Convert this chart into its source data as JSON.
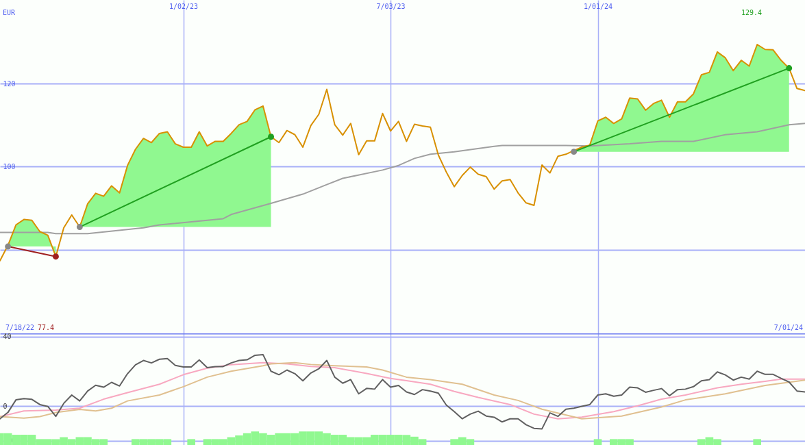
{
  "chart_data": [
    {
      "type": "line",
      "ylabel": "EUR",
      "xlim": [
        "2022-07-25",
        "2024-07-01"
      ],
      "ylim": [
        59.9,
        140.1
      ],
      "xticks": [
        {
          "value": "2023-01-02",
          "label": "1/02/23"
        },
        {
          "value": "2023-07-03",
          "label": "7/03/23"
        },
        {
          "value": "2024-01-01",
          "label": "1/01/24"
        }
      ],
      "yticks": [
        {
          "value": 80,
          "label": null
        },
        100,
        120
      ],
      "grid": true,
      "x": [
        "2022-07-25",
        "2022-08-01",
        "2022-08-08",
        "2022-08-15",
        "2022-08-22",
        "2022-08-29",
        "2022-09-05",
        "2022-09-12",
        "2022-09-19",
        "2022-09-26",
        "2022-10-03",
        "2022-10-10",
        "2022-10-17",
        "2022-10-24",
        "2022-10-31",
        "2022-11-07",
        "2022-11-14",
        "2022-11-21",
        "2022-11-28",
        "2022-12-05",
        "2022-12-12",
        "2022-12-19",
        "2022-12-26",
        "2023-01-02",
        "2023-01-09",
        "2023-01-16",
        "2023-01-23",
        "2023-01-30",
        "2023-02-06",
        "2023-02-13",
        "2023-02-20",
        "2023-02-27",
        "2023-03-06",
        "2023-03-13",
        "2023-03-20",
        "2023-03-27",
        "2023-04-03",
        "2023-04-10",
        "2023-04-17",
        "2023-04-24",
        "2023-05-01",
        "2023-05-08",
        "2023-05-15",
        "2023-05-22",
        "2023-05-29",
        "2023-06-05",
        "2023-06-12",
        "2023-06-19",
        "2023-06-26",
        "2023-07-03",
        "2023-07-10",
        "2023-07-17",
        "2023-07-24",
        "2023-07-31",
        "2023-08-07",
        "2023-08-14",
        "2023-08-21",
        "2023-08-28",
        "2023-09-04",
        "2023-09-11",
        "2023-09-18",
        "2023-09-25",
        "2023-10-02",
        "2023-10-09",
        "2023-10-16",
        "2023-10-23",
        "2023-10-30",
        "2023-11-06",
        "2023-11-13",
        "2023-11-20",
        "2023-11-27",
        "2023-12-04",
        "2023-12-11",
        "2023-12-18",
        "2023-12-25",
        "2024-01-01",
        "2024-01-08",
        "2024-01-15",
        "2024-01-22",
        "2024-01-29",
        "2024-02-05",
        "2024-02-12",
        "2024-02-19",
        "2024-02-26",
        "2024-03-04",
        "2024-03-11",
        "2024-03-18",
        "2024-03-25",
        "2024-04-01",
        "2024-04-08",
        "2024-04-15",
        "2024-04-22",
        "2024-04-29",
        "2024-05-06",
        "2024-05-13",
        "2024-05-20",
        "2024-05-27",
        "2024-06-03",
        "2024-06-10",
        "2024-06-17",
        "2024-06-24",
        "2024-07-01"
      ],
      "series": [
        {
          "color": "#a0a0a0",
          "x": [
            "2022-07-25",
            "2022-09-05",
            "2022-09-12",
            "2022-10-10",
            "2022-11-28",
            "2022-12-12",
            "2023-02-06",
            "2023-02-13",
            "2023-03-20",
            "2023-04-17",
            "2023-05-08",
            "2023-05-22",
            "2023-06-26",
            "2023-07-10",
            "2023-07-24",
            "2023-08-07",
            "2023-08-28",
            "2023-10-02",
            "2023-10-09",
            "2023-12-04",
            "2023-12-25",
            "2024-01-29",
            "2024-02-26",
            "2024-03-25",
            "2024-04-22",
            "2024-05-20",
            "2024-06-17",
            "2024-07-01"
          ],
          "values": [
            84.2,
            84.2,
            83.9,
            83.9,
            85.3,
            86.0,
            87.5,
            88.5,
            91.2,
            93.4,
            95.7,
            97.2,
            99.2,
            100.3,
            102.0,
            103.0,
            103.6,
            104.9,
            105.1,
            105.1,
            105.0,
            105.5,
            106.1,
            106.1,
            107.7,
            108.4,
            110.1,
            110.4
          ]
        },
        {
          "color": "#d89000",
          "values": [
            77.4,
            81.1,
            86.0,
            87.3,
            87.1,
            84.4,
            83.5,
            78.4,
            85.3,
            88.4,
            85.5,
            91.1,
            93.6,
            92.9,
            95.4,
            93.7,
            100.3,
            104.2,
            106.8,
            105.8,
            108.0,
            108.4,
            105.5,
            104.7,
            104.7,
            108.4,
            105.0,
            106.1,
            106.1,
            108.0,
            110.1,
            110.9,
            113.7,
            114.6,
            107.2,
            105.8,
            108.7,
            107.7,
            104.7,
            109.9,
            112.6,
            118.6,
            110.1,
            107.6,
            110.4,
            102.9,
            106.2,
            106.2,
            112.8,
            108.6,
            110.9,
            106.1,
            110.2,
            109.8,
            109.5,
            102.8,
            98.7,
            95.2,
            97.9,
            99.9,
            98.2,
            97.6,
            94.6,
            96.6,
            96.9,
            93.7,
            91.3,
            90.7,
            100.4,
            98.5,
            102.5,
            103.0,
            103.9,
            104.7,
            105.2,
            111.0,
            111.9,
            110.4,
            111.5,
            116.5,
            116.3,
            113.6,
            115.2,
            116.0,
            111.9,
            115.6,
            115.6,
            117.5,
            122.1,
            122.7,
            127.6,
            126.2,
            123.1,
            125.6,
            124.2,
            129.4,
            128.2,
            128.1,
            125.6,
            123.7,
            118.8,
            118.3
          ],
          "lower": [
            null,
            80.8,
            80.8,
            80.8,
            80.8,
            80.8,
            80.8,
            80.8,
            null,
            null,
            85.5,
            85.5,
            85.5,
            85.5,
            85.5,
            85.5,
            85.5,
            85.5,
            85.5,
            85.5,
            85.5,
            85.5,
            85.5,
            85.5,
            85.5,
            85.5,
            85.5,
            85.5,
            85.5,
            85.5,
            85.5,
            85.5,
            85.5,
            85.5,
            85.5,
            null,
            null,
            null,
            null,
            null,
            null,
            null,
            null,
            null,
            null,
            null,
            null,
            null,
            null,
            null,
            null,
            null,
            null,
            null,
            null,
            null,
            null,
            null,
            null,
            null,
            null,
            null,
            null,
            null,
            null,
            null,
            null,
            null,
            null,
            null,
            null,
            null,
            103.6,
            103.6,
            103.6,
            103.6,
            103.6,
            103.6,
            103.6,
            103.6,
            103.6,
            103.6,
            103.6,
            103.6,
            103.6,
            103.6,
            103.6,
            103.6,
            103.6,
            103.6,
            103.6,
            103.6,
            103.6,
            103.6,
            103.6,
            103.6,
            103.6,
            103.6,
            103.6,
            103.6,
            null,
            null
          ],
          "upper": [
            null,
            81.1,
            86.0,
            87.3,
            87.1,
            84.4,
            83.5,
            78.4,
            null,
            null,
            85.5,
            91.1,
            93.6,
            92.9,
            95.4,
            93.7,
            100.3,
            104.2,
            106.8,
            105.8,
            108.0,
            108.4,
            105.5,
            104.7,
            104.7,
            108.4,
            105.0,
            106.1,
            106.1,
            108.0,
            110.1,
            110.9,
            113.7,
            114.6,
            107.2,
            null,
            null,
            null,
            null,
            null,
            null,
            null,
            null,
            null,
            null,
            null,
            null,
            null,
            null,
            null,
            null,
            null,
            null,
            null,
            null,
            null,
            null,
            null,
            null,
            null,
            null,
            null,
            null,
            null,
            null,
            null,
            null,
            null,
            null,
            null,
            null,
            null,
            103.9,
            104.7,
            105.2,
            111.0,
            111.9,
            110.4,
            111.5,
            116.5,
            116.3,
            113.6,
            115.2,
            116.0,
            111.9,
            115.6,
            115.6,
            117.5,
            122.1,
            122.7,
            127.6,
            126.2,
            123.1,
            125.6,
            124.2,
            129.4,
            128.2,
            128.1,
            125.6,
            123.7,
            null,
            null
          ]
        },
        {
          "color": "#a02020",
          "x": [
            "2022-08-01",
            "2022-09-12"
          ],
          "values": [
            80.8,
            78.4
          ]
        },
        {
          "color": "#20a020",
          "x": [
            "2022-10-03",
            "2023-03-20"
          ],
          "values": [
            85.5,
            107.2
          ]
        },
        {
          "color": "#20a020",
          "x": [
            "2023-12-11",
            "2024-06-17"
          ],
          "values": [
            103.6,
            123.7
          ]
        },
        {
          "type": "scatter",
          "color": "#888888",
          "x": [
            "2022-08-01",
            "2022-10-03",
            "2023-12-11"
          ],
          "values": [
            80.8,
            85.5,
            103.6
          ]
        },
        {
          "type": "scatter",
          "colors": [
            "#a02020",
            "#20a020",
            "#20a020"
          ],
          "x": [
            "2022-09-12",
            "2023-03-20",
            "2024-06-17"
          ],
          "values": [
            78.4,
            107.2,
            123.7
          ]
        }
      ],
      "annotations": [
        "7/18/22",
        "7/01/24",
        "77.4",
        "129.4"
      ]
    },
    {
      "type": "line",
      "xlim": [
        "2022-07-25",
        "2024-07-01"
      ],
      "ylim": [
        -22.4,
        41.9
      ],
      "xticks": [
        {
          "value": "2023-01-02",
          "label": null
        },
        {
          "value": "2023-07-03",
          "label": null
        },
        {
          "value": "2024-01-01",
          "label": null
        }
      ],
      "yticks": [
        40,
        0,
        -20
      ],
      "grid": true,
      "tick_labels": "y",
      "x": [
        "2022-07-25",
        "2022-08-01",
        "2022-08-08",
        "2022-08-15",
        "2022-08-22",
        "2022-08-29",
        "2022-09-05",
        "2022-09-12",
        "2022-09-19",
        "2022-09-26",
        "2022-10-03",
        "2022-10-10",
        "2022-10-17",
        "2022-10-24",
        "2022-10-31",
        "2022-11-07",
        "2022-11-14",
        "2022-11-21",
        "2022-11-28",
        "2022-12-05",
        "2022-12-12",
        "2022-12-19",
        "2022-12-26",
        "2023-01-02",
        "2023-01-09",
        "2023-01-16",
        "2023-01-23",
        "2023-01-30",
        "2023-02-06",
        "2023-02-13",
        "2023-02-20",
        "2023-02-27",
        "2023-03-06",
        "2023-03-13",
        "2023-03-20",
        "2023-03-27",
        "2023-04-03",
        "2023-04-10",
        "2023-04-17",
        "2023-04-24",
        "2023-05-01",
        "2023-05-08",
        "2023-05-15",
        "2023-05-22",
        "2023-05-29",
        "2023-06-05",
        "2023-06-12",
        "2023-06-19",
        "2023-06-26",
        "2023-07-03",
        "2023-07-10",
        "2023-07-17",
        "2023-07-24",
        "2023-07-31",
        "2023-08-07",
        "2023-08-14",
        "2023-08-21",
        "2023-08-28",
        "2023-09-04",
        "2023-09-11",
        "2023-09-18",
        "2023-09-25",
        "2023-10-02",
        "2023-10-09",
        "2023-10-16",
        "2023-10-23",
        "2023-10-30",
        "2023-11-06",
        "2023-11-13",
        "2023-11-20",
        "2023-11-27",
        "2023-12-04",
        "2023-12-11",
        "2023-12-18",
        "2023-12-25",
        "2024-01-01",
        "2024-01-08",
        "2024-01-15",
        "2024-01-22",
        "2024-01-29",
        "2024-02-05",
        "2024-02-12",
        "2024-02-19",
        "2024-02-26",
        "2024-03-04",
        "2024-03-11",
        "2024-03-18",
        "2024-03-25",
        "2024-04-01",
        "2024-04-08",
        "2024-04-15",
        "2024-04-22",
        "2024-04-29",
        "2024-05-06",
        "2024-05-13",
        "2024-05-20",
        "2024-05-27",
        "2024-06-03",
        "2024-06-10",
        "2024-06-17",
        "2024-06-24",
        "2024-07-01"
      ],
      "series": [
        {
          "type": "bar",
          "color": "#90f890",
          "values": [
            6.8,
            6.8,
            5.9,
            5.9,
            5.9,
            3.4,
            3.4,
            3.4,
            4.5,
            3.4,
            4.5,
            4.5,
            3.4,
            3.4,
            null,
            null,
            null,
            3.4,
            3.4,
            3.4,
            3.4,
            3.4,
            null,
            null,
            3.4,
            null,
            3.4,
            3.4,
            3.4,
            4.5,
            5.5,
            6.8,
            7.8,
            6.8,
            5.9,
            6.8,
            6.8,
            6.8,
            7.8,
            7.8,
            7.8,
            6.8,
            5.9,
            5.9,
            4.5,
            4.5,
            4.5,
            5.9,
            5.9,
            5.9,
            5.9,
            5.8,
            4.8,
            3.4,
            null,
            null,
            null,
            3.4,
            4.5,
            3.4,
            null,
            null,
            null,
            null,
            null,
            null,
            null,
            null,
            null,
            null,
            null,
            null,
            null,
            null,
            null,
            3.4,
            null,
            3.4,
            3.4,
            3.4,
            null,
            null,
            null,
            null,
            null,
            null,
            null,
            null,
            3.4,
            4.5,
            3.4,
            null,
            null,
            null,
            null,
            3.4,
            null,
            null,
            null,
            null,
            null,
            null
          ],
          "base": [
            -22.4,
            -22.4,
            -22.4,
            -22.4,
            -22.4,
            -22.4,
            -22.4,
            -22.4,
            -22.4,
            -22.4,
            -22.4,
            -22.4,
            -22.4,
            -22.4,
            null,
            null,
            null,
            -22.4,
            -22.4,
            -22.4,
            -22.4,
            -22.4,
            null,
            null,
            -22.4,
            null,
            -22.4,
            -22.4,
            -22.4,
            -22.4,
            -22.4,
            -22.4,
            -22.4,
            -22.4,
            -22.4,
            -22.4,
            -22.4,
            -22.4,
            -22.4,
            -22.4,
            -22.4,
            -22.4,
            -22.4,
            -22.4,
            -22.4,
            -22.4,
            -22.4,
            -22.4,
            -22.4,
            -22.4,
            -22.4,
            -22.4,
            -22.4,
            -22.4,
            null,
            null,
            null,
            -22.4,
            -22.4,
            -22.4,
            null,
            null,
            null,
            null,
            null,
            null,
            null,
            null,
            null,
            null,
            null,
            null,
            null,
            null,
            null,
            -22.4,
            null,
            -22.4,
            -22.4,
            -22.4,
            null,
            null,
            null,
            null,
            null,
            null,
            null,
            null,
            -22.4,
            -22.4,
            -22.4,
            null,
            null,
            null,
            null,
            -22.4,
            null,
            null,
            null,
            null,
            null,
            null
          ]
        },
        {
          "color": "#f8a8c0",
          "x": [
            "2022-07-25",
            "2022-08-15",
            "2022-09-12",
            "2022-10-03",
            "2022-10-24",
            "2022-11-14",
            "2022-12-12",
            "2023-01-02",
            "2023-01-23",
            "2023-02-13",
            "2023-03-13",
            "2023-04-03",
            "2023-04-24",
            "2023-05-15",
            "2023-06-12",
            "2023-07-03",
            "2023-07-17",
            "2023-08-07",
            "2023-08-28",
            "2023-09-18",
            "2023-10-16",
            "2023-11-06",
            "2023-11-27",
            "2023-12-18",
            "2024-01-15",
            "2024-02-05",
            "2024-02-26",
            "2024-03-18",
            "2024-04-15",
            "2024-05-06",
            "2024-05-27",
            "2024-06-10",
            "2024-07-01"
          ],
          "values": [
            -6,
            -2.8,
            -2.3,
            -1.2,
            4.0,
            7.8,
            12.6,
            18.1,
            21.9,
            23.9,
            25.0,
            24.3,
            22.9,
            22.2,
            18.8,
            16.0,
            14.7,
            12.6,
            8.5,
            5.0,
            0.9,
            -4.6,
            -7.3,
            -6.3,
            -3.2,
            0.2,
            4.0,
            6.4,
            10.5,
            12.6,
            14.3,
            15.6,
            15.6
          ]
        },
        {
          "color": "#e0c090",
          "x": [
            "2022-07-25",
            "2022-08-15",
            "2022-08-29",
            "2022-09-12",
            "2022-10-03",
            "2022-10-17",
            "2022-10-31",
            "2022-11-14",
            "2022-12-12",
            "2023-01-02",
            "2023-01-23",
            "2023-02-13",
            "2023-03-13",
            "2023-03-20",
            "2023-04-10",
            "2023-04-24",
            "2023-05-15",
            "2023-06-12",
            "2023-06-26",
            "2023-07-17",
            "2023-08-07",
            "2023-09-04",
            "2023-10-02",
            "2023-10-23",
            "2023-11-13",
            "2023-12-18",
            "2024-01-22",
            "2024-02-26",
            "2024-03-18",
            "2024-04-22",
            "2024-05-27",
            "2024-07-01"
          ],
          "values": [
            -6,
            -6.9,
            -6,
            -3.7,
            -1.9,
            -2.8,
            -1.2,
            3.0,
            6.4,
            11.2,
            16.7,
            20.1,
            23.3,
            24.3,
            25.0,
            24.0,
            23.3,
            22.6,
            20.8,
            16.7,
            15.3,
            12.6,
            6.4,
            3.3,
            -1.8,
            -7.3,
            -5.7,
            -0.5,
            3.6,
            7.1,
            11.9,
            15.0
          ]
        },
        {
          "color": "#606060",
          "values": [
            -7.3,
            -3.6,
            3.6,
            4.3,
            3.9,
            0.9,
            -0.2,
            -5.9,
            1.6,
            6.4,
            3.0,
            8.7,
            12.0,
            10.9,
            13.7,
            11.6,
            18.7,
            23.8,
            26.3,
            24.9,
            27.0,
            27.4,
            23.5,
            22.6,
            22.6,
            26.6,
            22.2,
            22.8,
            22.8,
            24.9,
            26.3,
            26.7,
            29.3,
            29.7,
            20.1,
            18.1,
            20.8,
            18.7,
            14.6,
            19.1,
            21.5,
            26.3,
            16.7,
            13.2,
            15.3,
            7.1,
            10.2,
            9.8,
            15.3,
            10.9,
            11.9,
            8.2,
            6.7,
            9.5,
            8.7,
            7.5,
            0.6,
            -3.2,
            -7.3,
            -4.6,
            -2.9,
            -5.7,
            -6.4,
            -9.1,
            -7.3,
            -7.3,
            -10.7,
            -12.8,
            -13.1,
            -3.9,
            -5.9,
            -1.8,
            -1.2,
            -0.1,
            0.9,
            6.4,
            7.1,
            5.7,
            6.4,
            10.9,
            10.5,
            8.0,
            9.1,
            10.1,
            6.0,
            9.5,
            9.8,
            11.2,
            14.6,
            15.3,
            19.7,
            18.0,
            15.0,
            16.7,
            15.6,
            20.1,
            18.3,
            18.3,
            16.0,
            13.9,
            8.7,
            8.2
          ]
        }
      ]
    }
  ]
}
